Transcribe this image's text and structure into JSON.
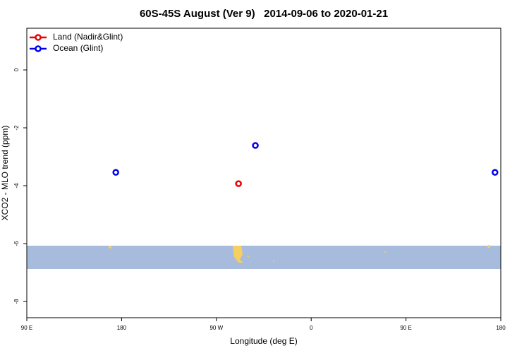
{
  "chart_data": {
    "type": "scatter",
    "title": "60S-45S August (Ver 9)   2014-09-06 to 2020-01-21",
    "x_label": "Longitude (deg E)",
    "y_label": "XCO2 - MLO trend (ppm)",
    "xlim": [
      90,
      540
    ],
    "ylim": [
      -8.56,
      1.44
    ],
    "xticks": [
      {
        "value": 90,
        "label": "90 E"
      },
      {
        "value": 180,
        "label": "180"
      },
      {
        "value": 270,
        "label": "90 W"
      },
      {
        "value": 360,
        "label": "0"
      },
      {
        "value": 450,
        "label": "90 E"
      },
      {
        "value": 540,
        "label": "180"
      }
    ],
    "yticks": [
      0,
      -2,
      -4,
      -6,
      -8
    ],
    "legend": "top-left",
    "series": [
      {
        "name": "Land (Nadir&Glint)",
        "color": "#ee0000",
        "x": [
          291
        ],
        "values": [
          -3.93
        ]
      },
      {
        "name": "Ocean (Glint)",
        "color": "#0000ee",
        "x": [
          174.5,
          307,
          534.5
        ],
        "values": [
          -3.54,
          -2.61,
          -3.54
        ]
      }
    ]
  }
}
